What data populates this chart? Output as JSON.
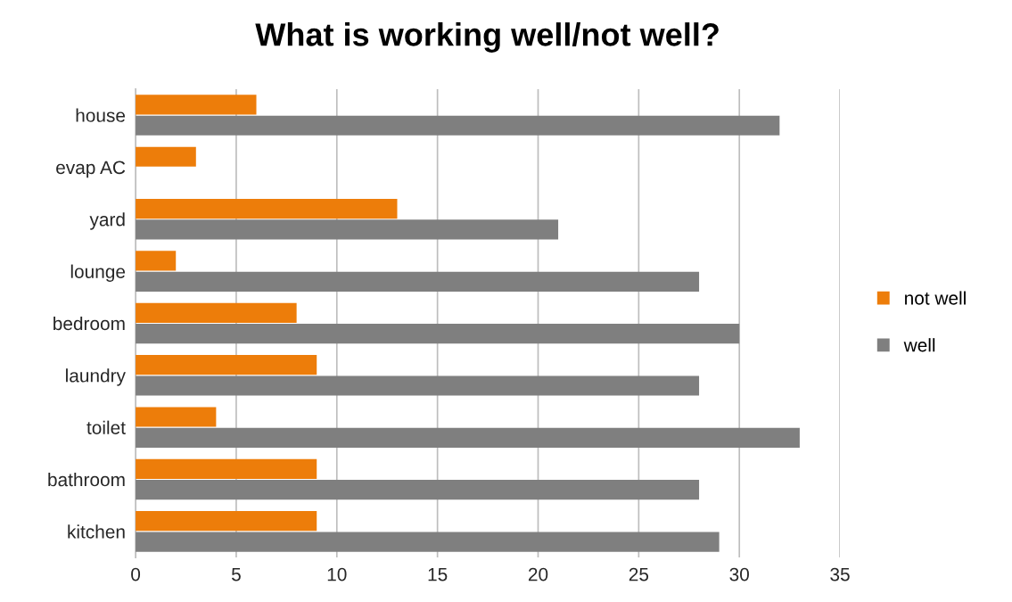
{
  "chart_data": {
    "type": "bar",
    "orientation": "horizontal",
    "title": "What is working well/not well?",
    "categories": [
      "house",
      "evap AC",
      "yard",
      "lounge",
      "bedroom",
      "laundry",
      "toilet",
      "bathroom",
      "kitchen"
    ],
    "series": [
      {
        "name": "not well",
        "color": "#ed7d0a",
        "values": [
          6,
          3,
          13,
          2,
          8,
          9,
          4,
          9,
          9
        ]
      },
      {
        "name": "well",
        "color": "#7f7f7f",
        "values": [
          32,
          null,
          21,
          28,
          30,
          28,
          33,
          28,
          29
        ]
      }
    ],
    "xlim": [
      0,
      35
    ],
    "xticks": [
      0,
      5,
      10,
      15,
      20,
      25,
      30,
      35
    ],
    "grid": "x",
    "legend": "right"
  }
}
